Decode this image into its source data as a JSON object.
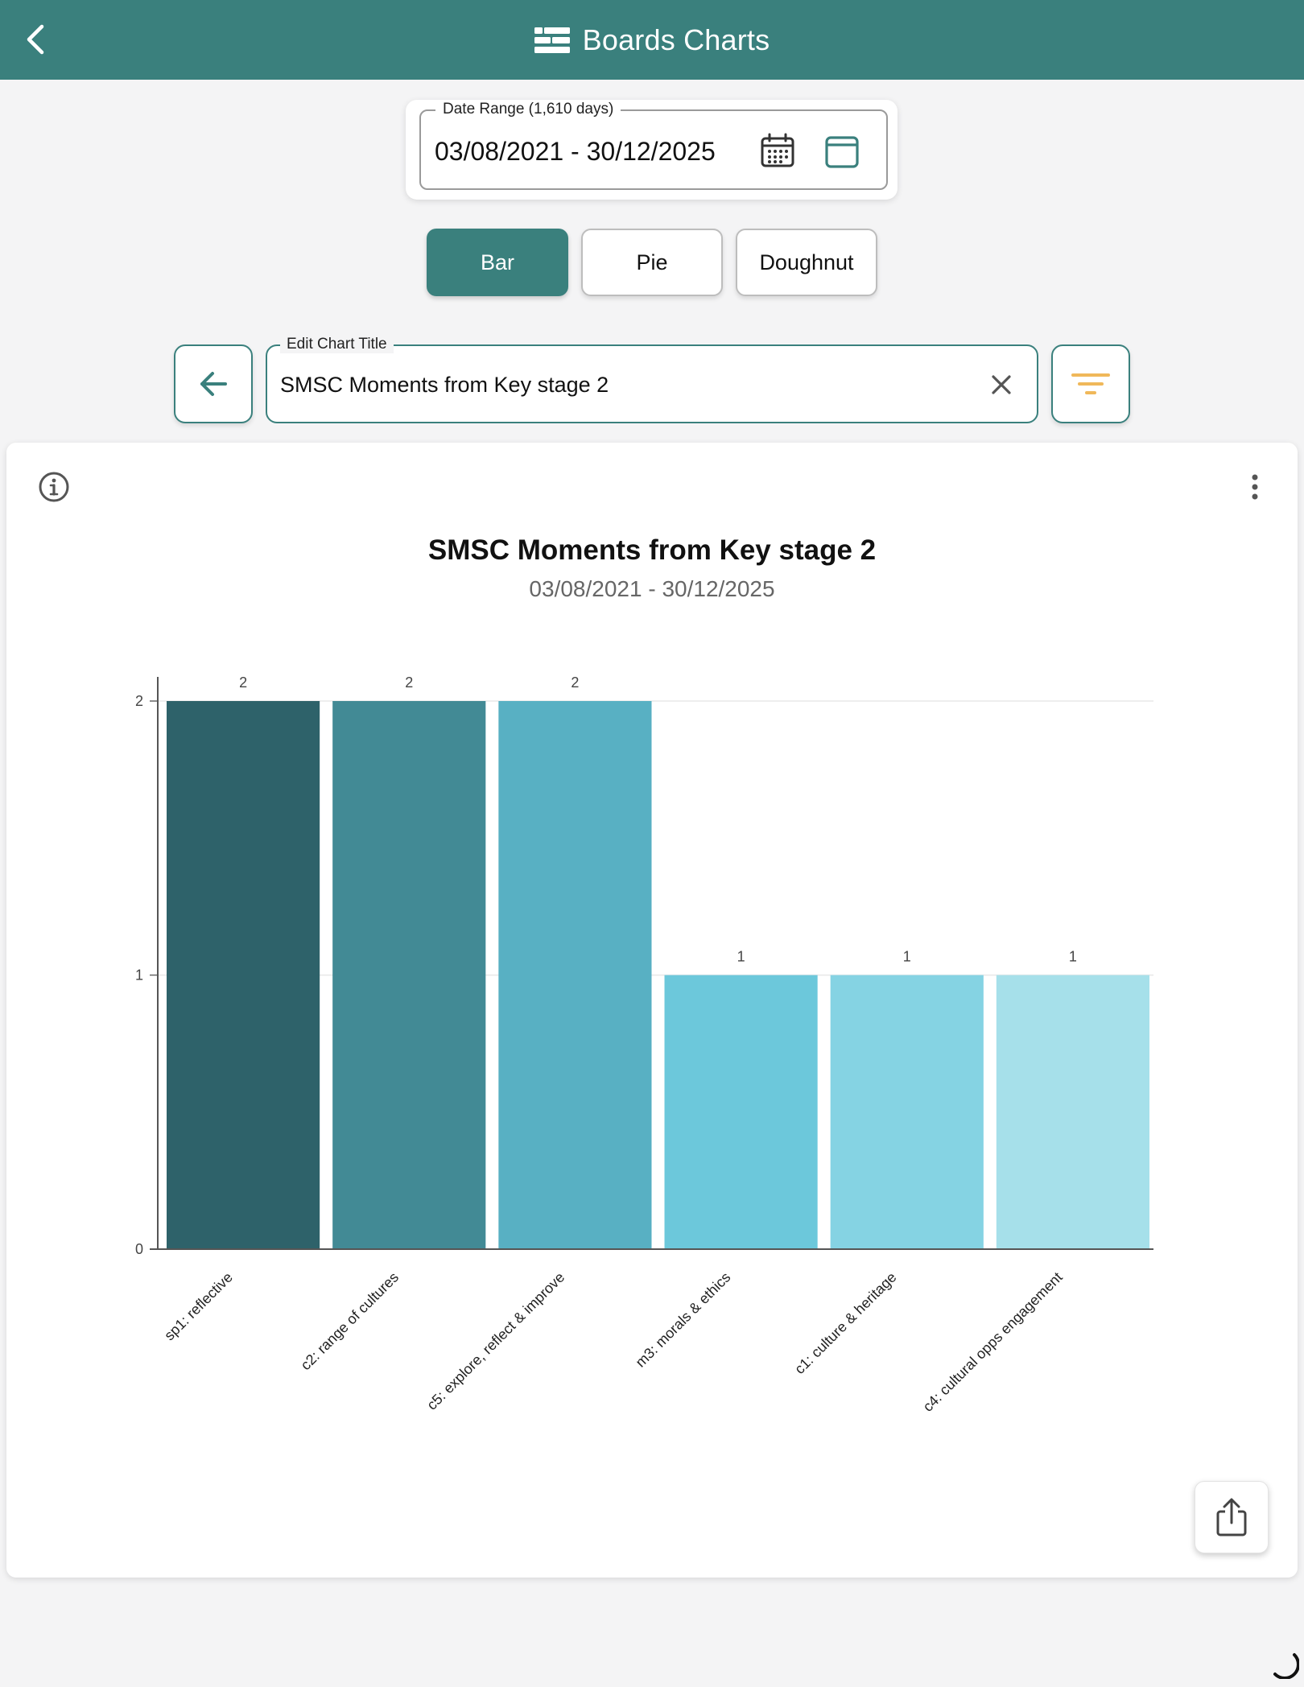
{
  "header": {
    "title": "Boards Charts",
    "back_icon": "chevron-left-icon",
    "logo_icon": "boards-icon"
  },
  "date_range": {
    "label": "Date Range (1,610 days)",
    "value": "03/08/2021 - 30/12/2025"
  },
  "chart_types": [
    {
      "label": "Bar",
      "active": true
    },
    {
      "label": "Pie",
      "active": false
    },
    {
      "label": "Doughnut",
      "active": false
    }
  ],
  "edit_title": {
    "label": "Edit Chart Title",
    "value": "SMSC Moments from Key stage 2"
  },
  "colors": {
    "accent": "#3a807d",
    "filter": "#f0b85a"
  },
  "chart_data": {
    "type": "bar",
    "title": "SMSC Moments from Key stage 2",
    "subtitle": "03/08/2021 - 30/12/2025",
    "categories": [
      "sp1: reflective",
      "c2: range of cultures",
      "c5: explore, reflect & improve",
      "m3: morals & ethics",
      "c1: culture & heritage",
      "c4: cultural opps engagement"
    ],
    "values": [
      2,
      2,
      2,
      1,
      1,
      1
    ],
    "colors": [
      "#2e626a",
      "#428a95",
      "#58b0c3",
      "#6cc8db",
      "#85d3e3",
      "#a6e0ea"
    ],
    "ylim": [
      0,
      2
    ],
    "yticks": [
      0,
      1,
      2
    ],
    "grid": true,
    "data_labels": true
  }
}
